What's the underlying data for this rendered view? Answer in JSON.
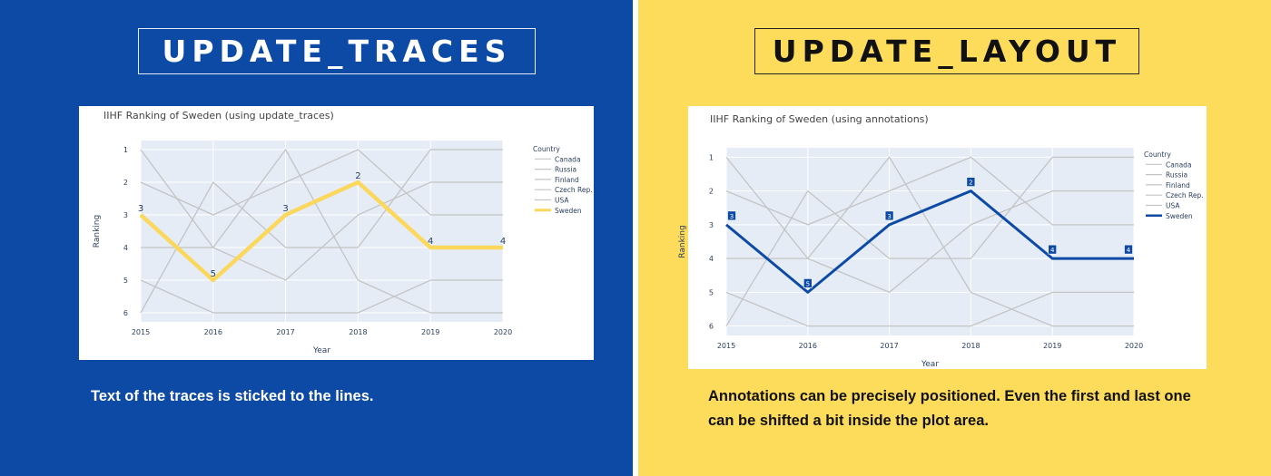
{
  "panels": {
    "left": {
      "heading": "UPDATE_TRACES",
      "caption": "Text of the traces is sticked to the lines."
    },
    "right": {
      "heading": "UPDATE_LAYOUT",
      "caption": "Annotations can be precisely positioned. Even the first and last one can be shifted a bit inside the plot area."
    }
  },
  "colors": {
    "left_background": "#0d4aa6",
    "right_background": "#fedc5b",
    "plot_background": "#e5ecf6",
    "context_line": "#c4c4c4",
    "sweden_left": "#fbd75b",
    "sweden_right": "#0d4aa6",
    "axis_text": "#2a3f5f"
  },
  "chart_data": [
    {
      "type": "line",
      "title": "IIHF Ranking of Sweden (using update_traces)",
      "xlabel": "Year",
      "ylabel": "Ranking",
      "x": [
        2015,
        2016,
        2017,
        2018,
        2019,
        2020
      ],
      "xlim": [
        2015,
        2020
      ],
      "ylim": [
        6,
        1
      ],
      "y_reversed": true,
      "yticks": [
        1,
        2,
        3,
        4,
        5,
        6
      ],
      "grid": true,
      "legend_title": "Country",
      "legend_position": "right",
      "series": [
        {
          "name": "Canada",
          "values": [
            1,
            4,
            5,
            3,
            2,
            2
          ],
          "highlight": false
        },
        {
          "name": "Russia",
          "values": [
            2,
            3,
            2,
            1,
            3,
            3
          ],
          "highlight": false
        },
        {
          "name": "Finland",
          "values": [
            6,
            2,
            4,
            4,
            1,
            1
          ],
          "highlight": false
        },
        {
          "name": "Czech Rep.",
          "values": [
            5,
            6,
            6,
            6,
            5,
            5
          ],
          "highlight": false
        },
        {
          "name": "USA",
          "values": [
            4,
            4,
            1,
            5,
            6,
            6
          ],
          "highlight": false
        },
        {
          "name": "Sweden",
          "values": [
            3,
            5,
            3,
            2,
            4,
            4
          ],
          "highlight": true
        }
      ],
      "data_labels": [
        "3",
        "5",
        "3",
        "2",
        "4",
        "4"
      ],
      "label_style": "trace-text"
    },
    {
      "type": "line",
      "title": "IIHF Ranking of Sweden (using annotations)",
      "xlabel": "Year",
      "ylabel": "Ranking",
      "x": [
        2015,
        2016,
        2017,
        2018,
        2019,
        2020
      ],
      "xlim": [
        2015,
        2020
      ],
      "ylim": [
        6,
        1
      ],
      "y_reversed": true,
      "yticks": [
        1,
        2,
        3,
        4,
        5,
        6
      ],
      "grid": true,
      "legend_title": "Country",
      "legend_position": "right",
      "series": [
        {
          "name": "Canada",
          "values": [
            1,
            4,
            5,
            3,
            2,
            2
          ],
          "highlight": false
        },
        {
          "name": "Russia",
          "values": [
            2,
            3,
            2,
            1,
            3,
            3
          ],
          "highlight": false
        },
        {
          "name": "Finland",
          "values": [
            6,
            2,
            4,
            4,
            1,
            1
          ],
          "highlight": false
        },
        {
          "name": "Czech Rep.",
          "values": [
            5,
            6,
            6,
            6,
            5,
            5
          ],
          "highlight": false
        },
        {
          "name": "USA",
          "values": [
            4,
            4,
            1,
            5,
            6,
            6
          ],
          "highlight": false
        },
        {
          "name": "Sweden",
          "values": [
            3,
            5,
            3,
            2,
            4,
            4
          ],
          "highlight": true
        }
      ],
      "data_labels": [
        "3",
        "5",
        "3",
        "2",
        "4",
        "4"
      ],
      "label_style": "annotation-box"
    }
  ]
}
